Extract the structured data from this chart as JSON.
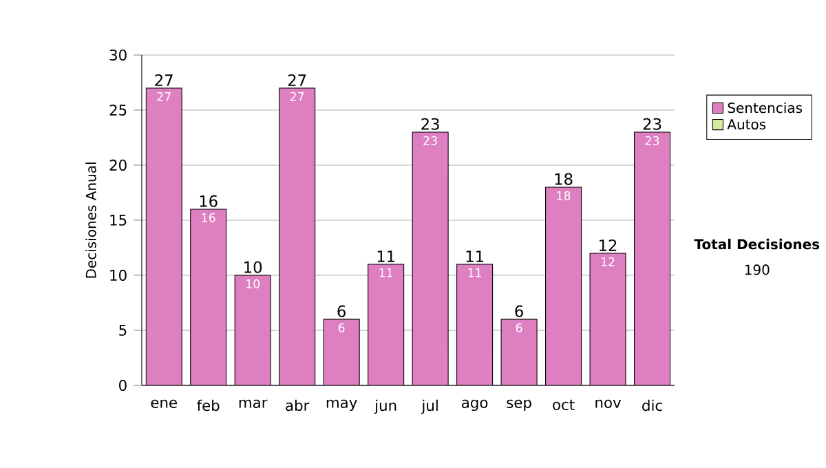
{
  "chart_data": {
    "type": "bar",
    "ylabel": "Decisiones Anual",
    "categories": [
      "ene",
      "feb",
      "mar",
      "abr",
      "may",
      "jun",
      "jul",
      "ago",
      "sep",
      "oct",
      "nov",
      "dic"
    ],
    "series": [
      {
        "name": "Sentencias",
        "color": "#dd7fc0",
        "values": [
          27,
          16,
          10,
          27,
          6,
          11,
          23,
          11,
          6,
          18,
          12,
          23
        ],
        "value_labels": [
          "27",
          "16",
          "10",
          "27",
          "6",
          "11",
          "23",
          "11",
          "6",
          "18",
          "12",
          "23"
        ]
      },
      {
        "name": "Autos",
        "color": "#d4eaa0",
        "values": [
          0,
          0,
          0,
          0,
          0,
          0,
          0,
          0,
          0,
          0,
          0,
          0
        ]
      }
    ],
    "stacked": true,
    "totals": [
      "27",
      "16",
      "10",
      "27",
      "6",
      "11",
      "23",
      "11",
      "6",
      "18",
      "12",
      "23"
    ],
    "ylim": [
      0,
      30
    ],
    "yticks": [
      0,
      5,
      10,
      15,
      20,
      25,
      30
    ],
    "grid": "y",
    "legend": "right",
    "annotations": [
      "Total Decisiones",
      "190"
    ]
  }
}
